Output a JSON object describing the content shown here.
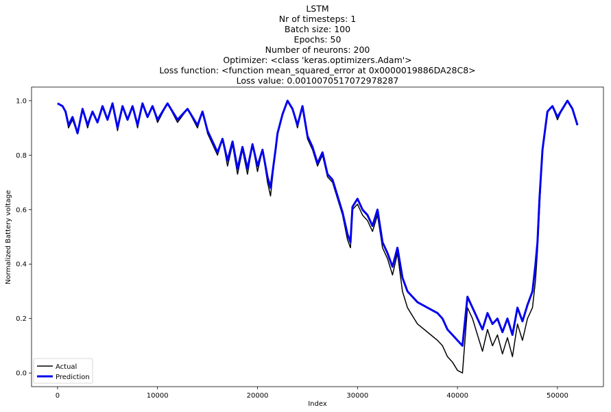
{
  "chart_data": {
    "type": "line",
    "title_lines": [
      "LSTM",
      "Nr of timesteps: 1",
      "Batch size: 100",
      "Epochs: 50",
      "Number of neurons: 200",
      "Optimizer: <class 'keras.optimizers.Adam'>",
      "Loss function: <function mean_squared_error at 0x0000019886DA28C8>",
      "Loss value: 0.0010070517072978287"
    ],
    "xlabel": "Index",
    "ylabel": "Normalized Battery voltage",
    "xlim": [
      -2600,
      54600
    ],
    "ylim": [
      -0.05,
      1.05
    ],
    "xticks": [
      0,
      10000,
      20000,
      30000,
      40000,
      50000
    ],
    "xtick_labels": [
      "0",
      "10000",
      "20000",
      "30000",
      "40000",
      "50000"
    ],
    "yticks": [
      0.0,
      0.2,
      0.4,
      0.6,
      0.8,
      1.0
    ],
    "ytick_labels": [
      "0.0",
      "0.2",
      "0.4",
      "0.6",
      "0.8",
      "1.0"
    ],
    "grid": false,
    "legend_position": "lower-left",
    "series": [
      {
        "name": "Actual",
        "color": "#000000",
        "x": [
          0,
          500,
          800,
          1100,
          1500,
          2000,
          2500,
          3000,
          3500,
          4000,
          4500,
          5000,
          5500,
          6000,
          6500,
          7000,
          7500,
          8000,
          8500,
          9000,
          9500,
          10000,
          11000,
          12000,
          13000,
          14000,
          14500,
          15000,
          16000,
          16500,
          17000,
          17500,
          18000,
          18500,
          19000,
          19500,
          20000,
          20500,
          21000,
          21300,
          21800,
          22000,
          22500,
          23000,
          23500,
          24000,
          24500,
          25000,
          25500,
          26000,
          26500,
          27000,
          27500,
          28000,
          28500,
          29000,
          29300,
          29500,
          30000,
          30500,
          31000,
          31500,
          32000,
          32500,
          33000,
          33500,
          34000,
          34500,
          35000,
          36000,
          37000,
          38000,
          38500,
          39000,
          39500,
          40000,
          40500,
          41000,
          41500,
          42000,
          42500,
          43000,
          43500,
          44000,
          44500,
          45000,
          45500,
          46000,
          46500,
          47000,
          47500,
          47800,
          48000,
          48200,
          48500,
          49000,
          49500,
          50000,
          50500,
          51000,
          51500,
          52000
        ],
        "values": [
          0.99,
          0.98,
          0.96,
          0.9,
          0.93,
          0.88,
          0.97,
          0.9,
          0.96,
          0.92,
          0.98,
          0.93,
          0.99,
          0.89,
          0.98,
          0.93,
          0.98,
          0.9,
          0.99,
          0.94,
          0.98,
          0.92,
          0.99,
          0.92,
          0.97,
          0.9,
          0.96,
          0.88,
          0.8,
          0.86,
          0.76,
          0.84,
          0.73,
          0.82,
          0.73,
          0.84,
          0.74,
          0.82,
          0.7,
          0.65,
          0.82,
          0.88,
          0.95,
          1.0,
          0.97,
          0.9,
          0.98,
          0.86,
          0.82,
          0.76,
          0.8,
          0.72,
          0.7,
          0.64,
          0.58,
          0.49,
          0.46,
          0.6,
          0.62,
          0.58,
          0.56,
          0.52,
          0.58,
          0.46,
          0.42,
          0.36,
          0.44,
          0.3,
          0.24,
          0.18,
          0.15,
          0.12,
          0.1,
          0.06,
          0.04,
          0.01,
          0.0,
          0.24,
          0.2,
          0.14,
          0.08,
          0.16,
          0.1,
          0.14,
          0.07,
          0.13,
          0.06,
          0.18,
          0.12,
          0.2,
          0.24,
          0.34,
          0.45,
          0.6,
          0.82,
          0.96,
          0.98,
          0.93,
          0.97,
          1.0,
          0.97,
          0.91
        ]
      },
      {
        "name": "Prediction",
        "color": "#0000ee",
        "x": [
          0,
          500,
          800,
          1100,
          1500,
          2000,
          2500,
          3000,
          3500,
          4000,
          4500,
          5000,
          5500,
          6000,
          6500,
          7000,
          7500,
          8000,
          8500,
          9000,
          9500,
          10000,
          11000,
          12000,
          13000,
          14000,
          14500,
          15000,
          16000,
          16500,
          17000,
          17500,
          18000,
          18500,
          19000,
          19500,
          20000,
          20500,
          21000,
          21300,
          21800,
          22000,
          22500,
          23000,
          23500,
          24000,
          24500,
          25000,
          25500,
          26000,
          26500,
          27000,
          27500,
          28000,
          28500,
          29000,
          29300,
          29500,
          30000,
          30500,
          31000,
          31500,
          32000,
          32500,
          33000,
          33500,
          34000,
          34500,
          35000,
          36000,
          37000,
          38000,
          38500,
          39000,
          39500,
          40000,
          40500,
          41000,
          41500,
          42000,
          42500,
          43000,
          43500,
          44000,
          44500,
          45000,
          45500,
          46000,
          46500,
          47000,
          47500,
          47800,
          48000,
          48200,
          48500,
          49000,
          49500,
          50000,
          50500,
          51000,
          51500,
          52000
        ],
        "values": [
          0.99,
          0.98,
          0.96,
          0.91,
          0.94,
          0.88,
          0.97,
          0.91,
          0.96,
          0.92,
          0.98,
          0.93,
          0.99,
          0.9,
          0.98,
          0.93,
          0.98,
          0.91,
          0.99,
          0.94,
          0.98,
          0.93,
          0.99,
          0.93,
          0.97,
          0.91,
          0.96,
          0.89,
          0.81,
          0.86,
          0.78,
          0.85,
          0.75,
          0.83,
          0.75,
          0.84,
          0.76,
          0.82,
          0.72,
          0.68,
          0.82,
          0.88,
          0.95,
          1.0,
          0.97,
          0.91,
          0.98,
          0.87,
          0.83,
          0.77,
          0.81,
          0.73,
          0.71,
          0.65,
          0.59,
          0.51,
          0.48,
          0.61,
          0.64,
          0.6,
          0.58,
          0.54,
          0.6,
          0.48,
          0.44,
          0.39,
          0.46,
          0.35,
          0.3,
          0.26,
          0.24,
          0.22,
          0.2,
          0.16,
          0.14,
          0.12,
          0.1,
          0.28,
          0.24,
          0.2,
          0.16,
          0.22,
          0.18,
          0.2,
          0.15,
          0.2,
          0.14,
          0.24,
          0.19,
          0.25,
          0.3,
          0.4,
          0.48,
          0.64,
          0.82,
          0.96,
          0.98,
          0.94,
          0.97,
          1.0,
          0.97,
          0.91
        ]
      }
    ]
  }
}
